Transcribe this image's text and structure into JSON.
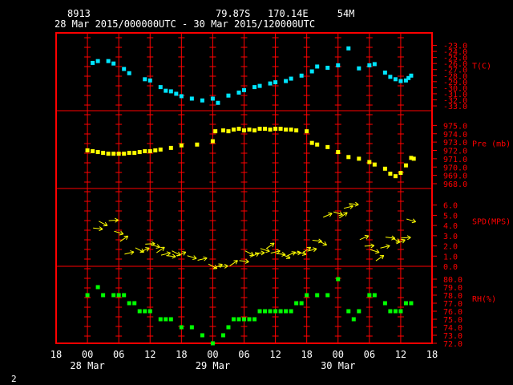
{
  "header": {
    "station_id": "8913",
    "location": "79.87S   170.14E     54M",
    "period": "28 Mar 2015/000000UTC - 30 Mar 2015/120000UTC"
  },
  "footer": {
    "page_number": "2"
  },
  "colors": {
    "frame": "#ff0000",
    "tick": "#ff0000",
    "text": "#ffffff",
    "temperature": "#00e5ff",
    "pressure": "#ffff00",
    "wind": "#ffff00",
    "humidity": "#00ff00"
  },
  "chart_data": {
    "type": "scatter",
    "x_unit": "hours since 28 Mar 2015 00 UTC",
    "x_range": [
      -6,
      66
    ],
    "x_ticks": {
      "values": [
        -6,
        0,
        6,
        12,
        18,
        24,
        30,
        36,
        42,
        48,
        54,
        60,
        66
      ],
      "labels": [
        "18",
        "00",
        "06",
        "12",
        "18",
        "00",
        "06",
        "12",
        "18",
        "00",
        "06",
        "12",
        "18"
      ]
    },
    "date_labels": [
      {
        "x": 0,
        "label": "28 Mar"
      },
      {
        "x": 24,
        "label": "29 Mar"
      },
      {
        "x": 48,
        "label": "30 Mar"
      }
    ],
    "panels": [
      {
        "name": "T(C)",
        "ylim": [
          -33.0,
          -22.0
        ],
        "ticks": [
          "-23.0",
          "-24.0",
          "-25.0",
          "-26.0",
          "-27.0",
          "-28.0",
          "-29.0",
          "-30.0",
          "-31.0",
          "-32.0",
          "-33.0"
        ],
        "tick_values": [
          -23,
          -24,
          -25,
          -26,
          -27,
          -28,
          -29,
          -30,
          -31,
          -32,
          -33
        ],
        "points": [
          [
            1,
            -25.9
          ],
          [
            2,
            -25.6
          ],
          [
            4,
            -25.6
          ],
          [
            5,
            -26.0
          ],
          [
            7,
            -26.9
          ],
          [
            8,
            -27.6
          ],
          [
            11,
            -28.6
          ],
          [
            12,
            -28.8
          ],
          [
            14,
            -29.9
          ],
          [
            15,
            -30.5
          ],
          [
            16,
            -30.6
          ],
          [
            17,
            -31.0
          ],
          [
            18,
            -31.4
          ],
          [
            20,
            -31.8
          ],
          [
            22,
            -32.1
          ],
          [
            24,
            -31.8
          ],
          [
            25,
            -32.5
          ],
          [
            27,
            -31.3
          ],
          [
            29,
            -30.8
          ],
          [
            30,
            -30.4
          ],
          [
            32,
            -29.9
          ],
          [
            33,
            -29.7
          ],
          [
            35,
            -29.3
          ],
          [
            36,
            -29.1
          ],
          [
            38,
            -28.9
          ],
          [
            39,
            -28.5
          ],
          [
            41,
            -28.0
          ],
          [
            43,
            -27.3
          ],
          [
            44,
            -26.5
          ],
          [
            46,
            -26.7
          ],
          [
            48,
            -26.3
          ],
          [
            50,
            -23.5
          ],
          [
            52,
            -26.8
          ],
          [
            54,
            -26.3
          ],
          [
            55,
            -26.1
          ],
          [
            57,
            -27.5
          ],
          [
            58,
            -28.2
          ],
          [
            59,
            -28.6
          ],
          [
            60,
            -28.9
          ],
          [
            61,
            -28.8
          ],
          [
            61.5,
            -28.4
          ],
          [
            62,
            -28.0
          ]
        ]
      },
      {
        "name": "Pre (mb)",
        "ylim": [
          968.0,
          976.0
        ],
        "ticks": [
          "975.0",
          "974.0",
          "973.0",
          "972.0",
          "971.0",
          "970.0",
          "969.0",
          "968.0"
        ],
        "tick_values": [
          975,
          974,
          973,
          972,
          971,
          970,
          969,
          968
        ],
        "points": [
          [
            0,
            972.0
          ],
          [
            1,
            971.9
          ],
          [
            2,
            971.8
          ],
          [
            3,
            971.7
          ],
          [
            4,
            971.6
          ],
          [
            5,
            971.6
          ],
          [
            6,
            971.6
          ],
          [
            7,
            971.6
          ],
          [
            8,
            971.7
          ],
          [
            9,
            971.7
          ],
          [
            10,
            971.8
          ],
          [
            11,
            971.9
          ],
          [
            12,
            971.9
          ],
          [
            13,
            972.0
          ],
          [
            14,
            972.1
          ],
          [
            16,
            972.3
          ],
          [
            18,
            972.6
          ],
          [
            21,
            972.7
          ],
          [
            24,
            973.1
          ],
          [
            24.5,
            974.3
          ],
          [
            26,
            974.4
          ],
          [
            27,
            974.3
          ],
          [
            28,
            974.5
          ],
          [
            29,
            974.6
          ],
          [
            30,
            974.4
          ],
          [
            31,
            974.5
          ],
          [
            32,
            974.4
          ],
          [
            33,
            974.6
          ],
          [
            34,
            974.6
          ],
          [
            35,
            974.5
          ],
          [
            36,
            974.6
          ],
          [
            37,
            974.6
          ],
          [
            38,
            974.5
          ],
          [
            39,
            974.5
          ],
          [
            40,
            974.4
          ],
          [
            42,
            974.3
          ],
          [
            43,
            972.9
          ],
          [
            44,
            972.7
          ],
          [
            46,
            972.4
          ],
          [
            48,
            971.8
          ],
          [
            50,
            971.2
          ],
          [
            52,
            971.0
          ],
          [
            54,
            970.6
          ],
          [
            55,
            970.3
          ],
          [
            57,
            969.8
          ],
          [
            58,
            969.2
          ],
          [
            59,
            968.9
          ],
          [
            60,
            969.3
          ],
          [
            61,
            970.2
          ],
          [
            62,
            971.1
          ],
          [
            62.5,
            971.0
          ]
        ]
      },
      {
        "name": "SPD(MPS)",
        "ylim": [
          0.0,
          7.0
        ],
        "ticks": [
          "6.0",
          "5.0",
          "4.0",
          "3.0",
          "2.0",
          "1.0",
          "0.0"
        ],
        "tick_values": [
          6,
          5,
          4,
          3,
          2,
          1,
          0
        ],
        "points": [
          [
            2,
            3.7
          ],
          [
            3,
            4.2
          ],
          [
            5,
            4.5
          ],
          [
            6,
            3.3
          ],
          [
            7,
            2.7
          ],
          [
            8,
            1.3
          ],
          [
            10,
            1.6
          ],
          [
            11,
            1.6
          ],
          [
            12,
            2.2
          ],
          [
            13,
            2.0
          ],
          [
            14,
            1.6
          ],
          [
            15,
            1.2
          ],
          [
            16,
            1.0
          ],
          [
            17,
            1.3
          ],
          [
            18,
            1.2
          ],
          [
            20,
            0.9
          ],
          [
            22,
            0.7
          ],
          [
            24,
            0.0
          ],
          [
            25,
            0.0
          ],
          [
            26,
            0.0
          ],
          [
            28,
            0.3
          ],
          [
            30,
            0.5
          ],
          [
            31,
            1.3
          ],
          [
            32,
            1.1
          ],
          [
            33,
            1.3
          ],
          [
            34,
            1.6
          ],
          [
            35,
            2.0
          ],
          [
            36,
            1.4
          ],
          [
            37,
            1.2
          ],
          [
            38,
            1.0
          ],
          [
            39,
            1.2
          ],
          [
            40,
            1.3
          ],
          [
            41,
            1.3
          ],
          [
            42,
            1.6
          ],
          [
            43,
            1.6
          ],
          [
            44,
            2.5
          ],
          [
            45,
            2.3
          ],
          [
            46,
            5.0
          ],
          [
            48,
            5.2
          ],
          [
            49,
            5.0
          ],
          [
            50,
            5.8
          ],
          [
            51,
            6.1
          ],
          [
            53,
            2.8
          ],
          [
            54,
            2.0
          ],
          [
            55,
            1.5
          ],
          [
            56,
            0.8
          ],
          [
            57,
            1.9
          ],
          [
            58,
            2.8
          ],
          [
            59,
            2.6
          ],
          [
            60,
            2.4
          ],
          [
            61,
            2.8
          ],
          [
            62,
            4.5
          ]
        ]
      },
      {
        "name": "RH(%)",
        "ylim": [
          72.0,
          81.0
        ],
        "ticks": [
          "80.0",
          "79.0",
          "78.0",
          "77.0",
          "76.0",
          "75.0",
          "74.0",
          "73.0",
          "72.0"
        ],
        "tick_values": [
          80,
          79,
          78,
          77,
          76,
          75,
          74,
          73,
          72
        ],
        "points": [
          [
            0,
            78
          ],
          [
            2,
            79
          ],
          [
            3,
            78
          ],
          [
            5,
            78
          ],
          [
            6,
            78
          ],
          [
            7,
            78
          ],
          [
            8,
            77
          ],
          [
            9,
            77
          ],
          [
            10,
            76
          ],
          [
            11,
            76
          ],
          [
            12,
            76
          ],
          [
            14,
            75
          ],
          [
            15,
            75
          ],
          [
            16,
            75
          ],
          [
            18,
            74
          ],
          [
            20,
            74
          ],
          [
            22,
            73
          ],
          [
            24,
            72
          ],
          [
            26,
            73
          ],
          [
            27,
            74
          ],
          [
            28,
            75
          ],
          [
            29,
            75
          ],
          [
            30,
            75
          ],
          [
            31,
            75
          ],
          [
            32,
            75
          ],
          [
            33,
            76
          ],
          [
            34,
            76
          ],
          [
            35,
            76
          ],
          [
            36,
            76
          ],
          [
            37,
            76
          ],
          [
            38,
            76
          ],
          [
            39,
            76
          ],
          [
            40,
            77
          ],
          [
            41,
            77
          ],
          [
            42,
            78
          ],
          [
            44,
            78
          ],
          [
            46,
            78
          ],
          [
            48,
            80
          ],
          [
            50,
            76
          ],
          [
            51,
            75
          ],
          [
            52,
            76
          ],
          [
            54,
            78
          ],
          [
            55,
            78
          ],
          [
            57,
            77
          ],
          [
            58,
            76
          ],
          [
            59,
            76
          ],
          [
            60,
            76
          ],
          [
            61,
            77
          ],
          [
            62,
            77
          ]
        ]
      }
    ]
  }
}
